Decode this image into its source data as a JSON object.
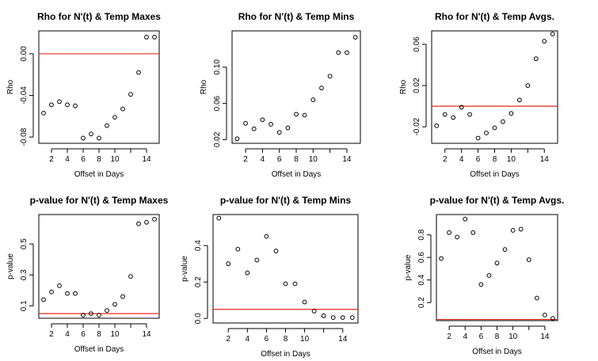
{
  "chart_data": [
    {
      "type": "scatter",
      "title": "Rho for N'(t) & Temp Maxes",
      "xlabel": "Offset in Days",
      "ylabel": "Rho",
      "xlim": [
        0.4,
        15.6
      ],
      "ylim": [
        -0.086,
        0.022
      ],
      "xticks": [
        2,
        4,
        6,
        8,
        10,
        12,
        14
      ],
      "xtick_labels": [
        "2",
        "4",
        "6",
        "8",
        "10",
        "",
        "14"
      ],
      "yticks": [
        -0.08,
        -0.04,
        0.0
      ],
      "ytick_labels": [
        "-0.08",
        "-0.04",
        "0.00"
      ],
      "x": [
        1,
        2,
        3,
        4,
        5,
        6,
        7,
        8,
        9,
        10,
        11,
        12,
        13,
        14,
        15
      ],
      "y": [
        -0.057,
        -0.049,
        -0.046,
        -0.049,
        -0.05,
        -0.081,
        -0.077,
        -0.081,
        -0.069,
        -0.061,
        -0.053,
        -0.039,
        -0.018,
        0.016,
        0.016
      ],
      "hline": {
        "y": 0.0,
        "color": "#e8291e"
      },
      "grid": false,
      "point_color": "#000000"
    },
    {
      "type": "scatter",
      "title": "Rho for N'(t) & Temp Mins",
      "xlabel": "Offset in Days",
      "ylabel": "Rho",
      "xlim": [
        0.4,
        15.6
      ],
      "ylim": [
        0.016,
        0.14
      ],
      "xticks": [
        2,
        4,
        6,
        8,
        10,
        12,
        14
      ],
      "xtick_labels": [
        "2",
        "4",
        "6",
        "8",
        "10",
        "",
        "14"
      ],
      "yticks": [
        0.02,
        0.06,
        0.1
      ],
      "ytick_labels": [
        "0.02",
        "0.06",
        "0.10"
      ],
      "x": [
        1,
        2,
        3,
        4,
        5,
        6,
        7,
        8,
        9,
        10,
        11,
        12,
        13,
        14,
        15
      ],
      "y": [
        0.021,
        0.038,
        0.032,
        0.042,
        0.037,
        0.028,
        0.033,
        0.048,
        0.047,
        0.064,
        0.077,
        0.09,
        0.116,
        0.116,
        0.133
      ],
      "grid": false,
      "point_color": "#000000"
    },
    {
      "type": "scatter",
      "title": "Rho for N'(t) & Temp  Avgs.",
      "xlabel": "Offset in Days",
      "ylabel": "Rho",
      "xlim": [
        0.4,
        15.6
      ],
      "ylim": [
        -0.036,
        0.073
      ],
      "xticks": [
        2,
        4,
        6,
        8,
        10,
        12,
        14
      ],
      "xtick_labels": [
        "2",
        "4",
        "6",
        "8",
        "10",
        "",
        "14"
      ],
      "yticks": [
        -0.02,
        0.02,
        0.06
      ],
      "ytick_labels": [
        "-0.02",
        "0.02",
        "0.06"
      ],
      "x": [
        1,
        2,
        3,
        4,
        5,
        6,
        7,
        8,
        9,
        10,
        11,
        12,
        13,
        14,
        15
      ],
      "y": [
        -0.019,
        -0.008,
        -0.011,
        -0.001,
        -0.008,
        -0.031,
        -0.026,
        -0.021,
        -0.015,
        -0.007,
        0.006,
        0.02,
        0.046,
        0.063,
        0.07
      ],
      "hline": {
        "y": 0.0,
        "color": "#e8291e"
      },
      "grid": false,
      "point_color": "#000000"
    },
    {
      "type": "scatter",
      "title": "p-value for N'(t) & Temp Maxes",
      "xlabel": "Offset in Days",
      "ylabel": "p-value",
      "xlim": [
        0.4,
        15.6
      ],
      "ylim": [
        0.02,
        0.69
      ],
      "xticks": [
        2,
        4,
        6,
        8,
        10,
        12,
        14
      ],
      "xtick_labels": [
        "2",
        "4",
        "6",
        "8",
        "10",
        "",
        "14"
      ],
      "yticks": [
        0.1,
        0.3,
        0.5
      ],
      "ytick_labels": [
        "0.1",
        "0.3",
        "0.5"
      ],
      "x": [
        1,
        2,
        3,
        4,
        5,
        6,
        7,
        8,
        9,
        10,
        11,
        12,
        13,
        14,
        15
      ],
      "y": [
        0.14,
        0.19,
        0.23,
        0.18,
        0.18,
        0.04,
        0.05,
        0.04,
        0.07,
        0.11,
        0.16,
        0.29,
        0.63,
        0.64,
        0.66
      ],
      "hline": {
        "y": 0.05,
        "color": "#e8291e"
      },
      "grid": false,
      "point_color": "#000000"
    },
    {
      "type": "scatter",
      "title": "p-value for N'(t) & Temp Mins",
      "xlabel": "Offset in Days",
      "ylabel": "p-value",
      "xlim": [
        0.4,
        15.6
      ],
      "ylim": [
        -0.025,
        0.57
      ],
      "xticks": [
        2,
        4,
        6,
        8,
        10,
        12,
        14
      ],
      "xtick_labels": [
        "2",
        "4",
        "6",
        "8",
        "10",
        "",
        "14"
      ],
      "yticks": [
        0.0,
        0.2,
        0.4
      ],
      "ytick_labels": [
        "0.0",
        "0.2",
        "0.4"
      ],
      "x": [
        1,
        2,
        3,
        4,
        5,
        6,
        7,
        8,
        9,
        10,
        11,
        12,
        13,
        14,
        15
      ],
      "y": [
        0.55,
        0.3,
        0.38,
        0.25,
        0.32,
        0.45,
        0.37,
        0.19,
        0.19,
        0.09,
        0.04,
        0.015,
        0.005,
        0.005,
        0.005
      ],
      "hline": {
        "y": 0.05,
        "color": "#e8291e"
      },
      "grid": false,
      "point_color": "#000000"
    },
    {
      "type": "scatter",
      "title": "p-value for N'(t) & Temp  Avgs.",
      "xlabel": "Offset in Days",
      "ylabel": "p-value",
      "xlim": [
        0.4,
        15.6
      ],
      "ylim": [
        0.04,
        0.98
      ],
      "xticks": [
        2,
        4,
        6,
        8,
        10,
        12,
        14
      ],
      "xtick_labels": [
        "2",
        "4",
        "6",
        "8",
        "10",
        "",
        "14"
      ],
      "yticks": [
        0.2,
        0.4,
        0.6,
        0.8
      ],
      "ytick_labels": [
        "0.2",
        "0.4",
        "0.6",
        "0.8"
      ],
      "x": [
        1,
        2,
        3,
        4,
        5,
        6,
        7,
        8,
        9,
        10,
        11,
        12,
        13,
        14,
        15
      ],
      "y": [
        0.59,
        0.82,
        0.78,
        0.94,
        0.82,
        0.36,
        0.44,
        0.55,
        0.67,
        0.84,
        0.85,
        0.58,
        0.24,
        0.09,
        0.06
      ],
      "hline": {
        "y": 0.05,
        "color": "#e8291e"
      },
      "grid": false,
      "point_color": "#000000"
    }
  ]
}
